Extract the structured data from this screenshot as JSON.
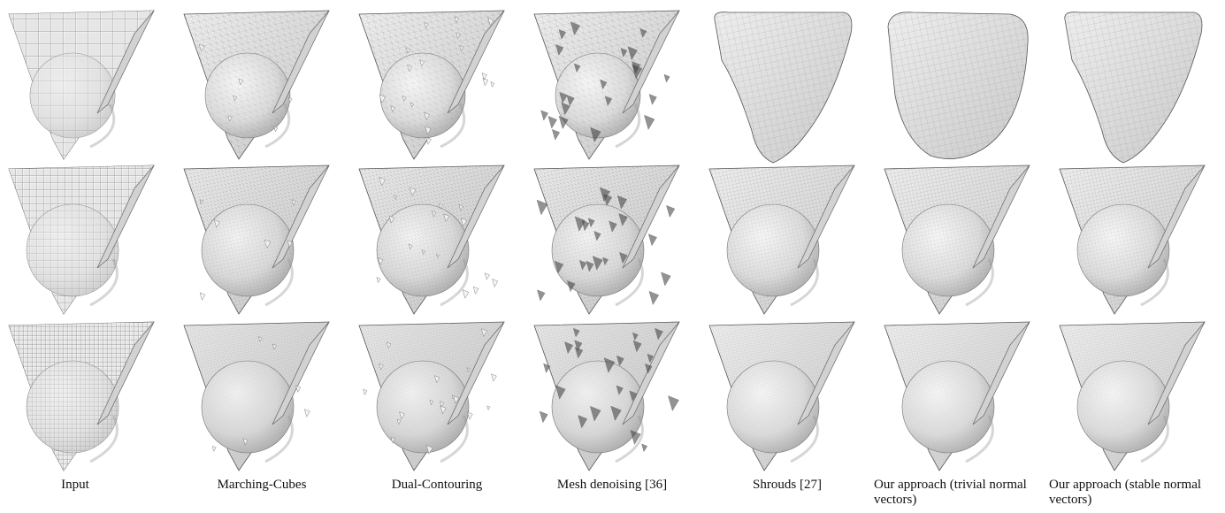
{
  "figure": {
    "columns": [
      {
        "id": "input",
        "caption": "Input",
        "style": "voxel"
      },
      {
        "id": "marching-cubes",
        "caption": "Marching-Cubes",
        "style": "triangulated"
      },
      {
        "id": "dual-contouring",
        "caption": "Dual-Contouring",
        "style": "noisy"
      },
      {
        "id": "mesh-denoising",
        "caption": "Mesh denoising [36]",
        "style": "spiky"
      },
      {
        "id": "shrouds",
        "caption": "Shrouds [27]",
        "style": "smooth"
      },
      {
        "id": "ours-trivial",
        "caption": "Our approach (trivial normal vectors)",
        "style": "smooth-blob"
      },
      {
        "id": "ours-stable",
        "caption": "Our approach (stable normal vectors)",
        "style": "smooth"
      }
    ],
    "rows": [
      {
        "id": "low-res"
      },
      {
        "id": "mid-res"
      },
      {
        "id": "high-res"
      }
    ]
  }
}
